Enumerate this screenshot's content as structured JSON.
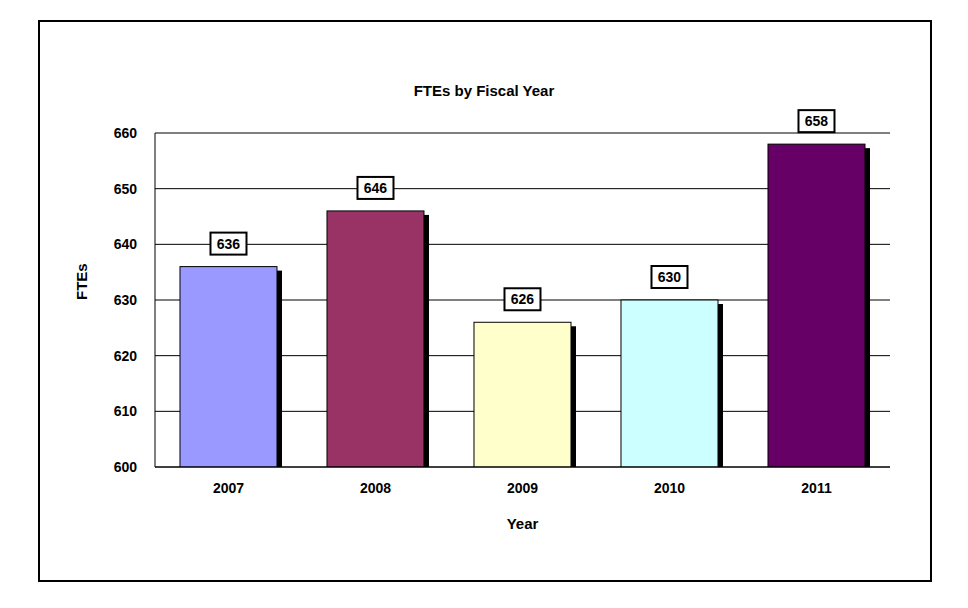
{
  "chart_data": {
    "type": "bar",
    "title": "FTEs by Fiscal Year",
    "x_label": "Year",
    "y_label": "FTEs",
    "categories": [
      "2007",
      "2008",
      "2009",
      "2010",
      "2011"
    ],
    "values": [
      636,
      646,
      626,
      630,
      658
    ],
    "colors": [
      "#9999ff",
      "#993366",
      "#ffffcc",
      "#ccffff",
      "#660066"
    ],
    "ylim": [
      600,
      660
    ],
    "yticks": [
      600,
      610,
      620,
      630,
      640,
      650,
      660
    ],
    "grid": true,
    "data_labels": true
  }
}
